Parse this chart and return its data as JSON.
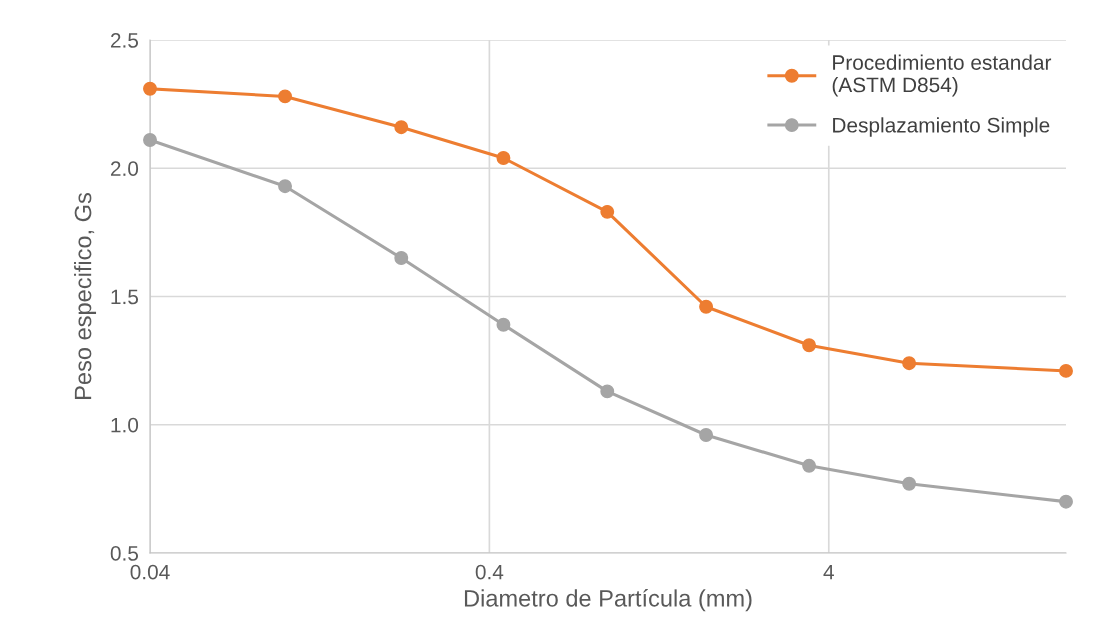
{
  "chart_data": {
    "type": "line",
    "xlabel": "Diametro de Partícula (mm)",
    "ylabel": "Peso especifico, Gs",
    "log": "x",
    "xlim": [
      0.04,
      20
    ],
    "xticks": [
      0.04,
      0.4,
      4
    ],
    "ylim": [
      0.5,
      2.5
    ],
    "yticks": [
      0.5,
      {
        "value": 1,
        "label": "1.0"
      },
      1.5,
      {
        "value": 2,
        "label": "2.0"
      },
      2.5
    ],
    "grid": true,
    "legend": "top right",
    "marker": "circle",
    "line_style": "solid",
    "series": [
      {
        "name": "Procedimiento estandar\n(ASTM D854)",
        "color": "#ed7d31",
        "x": [
          0.04,
          0.1,
          0.22,
          0.44,
          0.89,
          1.74,
          3.5,
          6.9,
          20
        ],
        "values": [
          2.31,
          2.28,
          2.16,
          2.04,
          1.83,
          1.46,
          1.31,
          1.24,
          1.21
        ]
      },
      {
        "name": "Desplazamiento Simple",
        "color": "#a5a5a5",
        "x": [
          0.04,
          0.1,
          0.22,
          0.44,
          0.89,
          1.74,
          3.5,
          6.9,
          20
        ],
        "values": [
          2.11,
          1.93,
          1.65,
          1.39,
          1.13,
          0.96,
          0.84,
          0.77,
          0.7
        ]
      }
    ]
  }
}
